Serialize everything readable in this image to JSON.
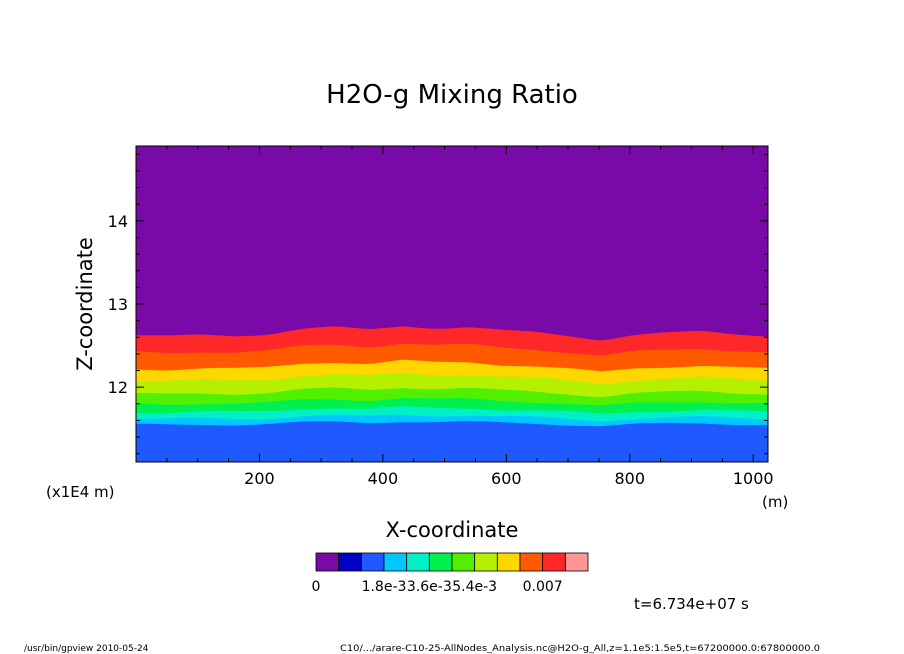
{
  "chart_data": {
    "type": "heatmap",
    "title": "H2O-g Mixing Ratio",
    "xlabel": "X-coordinate",
    "ylabel": "Z-coordinate",
    "x_units": "(m)",
    "y_units": "(x1E4 m)",
    "xlim": [
      0,
      1024
    ],
    "ylim": [
      11.1,
      14.9
    ],
    "x_ticks": [
      200,
      400,
      600,
      800,
      1000
    ],
    "y_ticks": [
      12,
      13,
      14
    ],
    "levels_bottom_z": [
      11.1,
      11.55,
      11.62,
      11.7,
      11.8,
      11.92,
      12.08,
      12.22,
      12.42,
      12.62
    ],
    "interface_wave": [
      0.0,
      -0.01,
      0.01,
      0.0,
      0.02,
      0.08,
      0.1,
      0.07,
      0.12,
      0.09,
      0.1,
      0.06,
      0.04,
      0.0,
      -0.05,
      0.01,
      0.03,
      0.05,
      0.02,
      0.0
    ],
    "colorbar": {
      "colors": [
        "#7a0aa8",
        "#0000c8",
        "#1e5aff",
        "#00c8ff",
        "#00f0c8",
        "#00f050",
        "#50f000",
        "#b4f000",
        "#ffd700",
        "#ff5a00",
        "#ff2828",
        "#ff9696"
      ],
      "labels": [
        "0",
        "1.8e-3",
        "3.6e-3",
        "5.4e-3",
        "0.007"
      ]
    },
    "time_label": "t=6.734e+07 s",
    "footer_left": "/usr/bin/gpview  2010-05-24",
    "footer_right": "C10/.../arare-C10-25-AllNodes_Analysis.nc@H2O-g_All,z=1.1e5:1.5e5,t=67200000.0:67800000.0"
  }
}
